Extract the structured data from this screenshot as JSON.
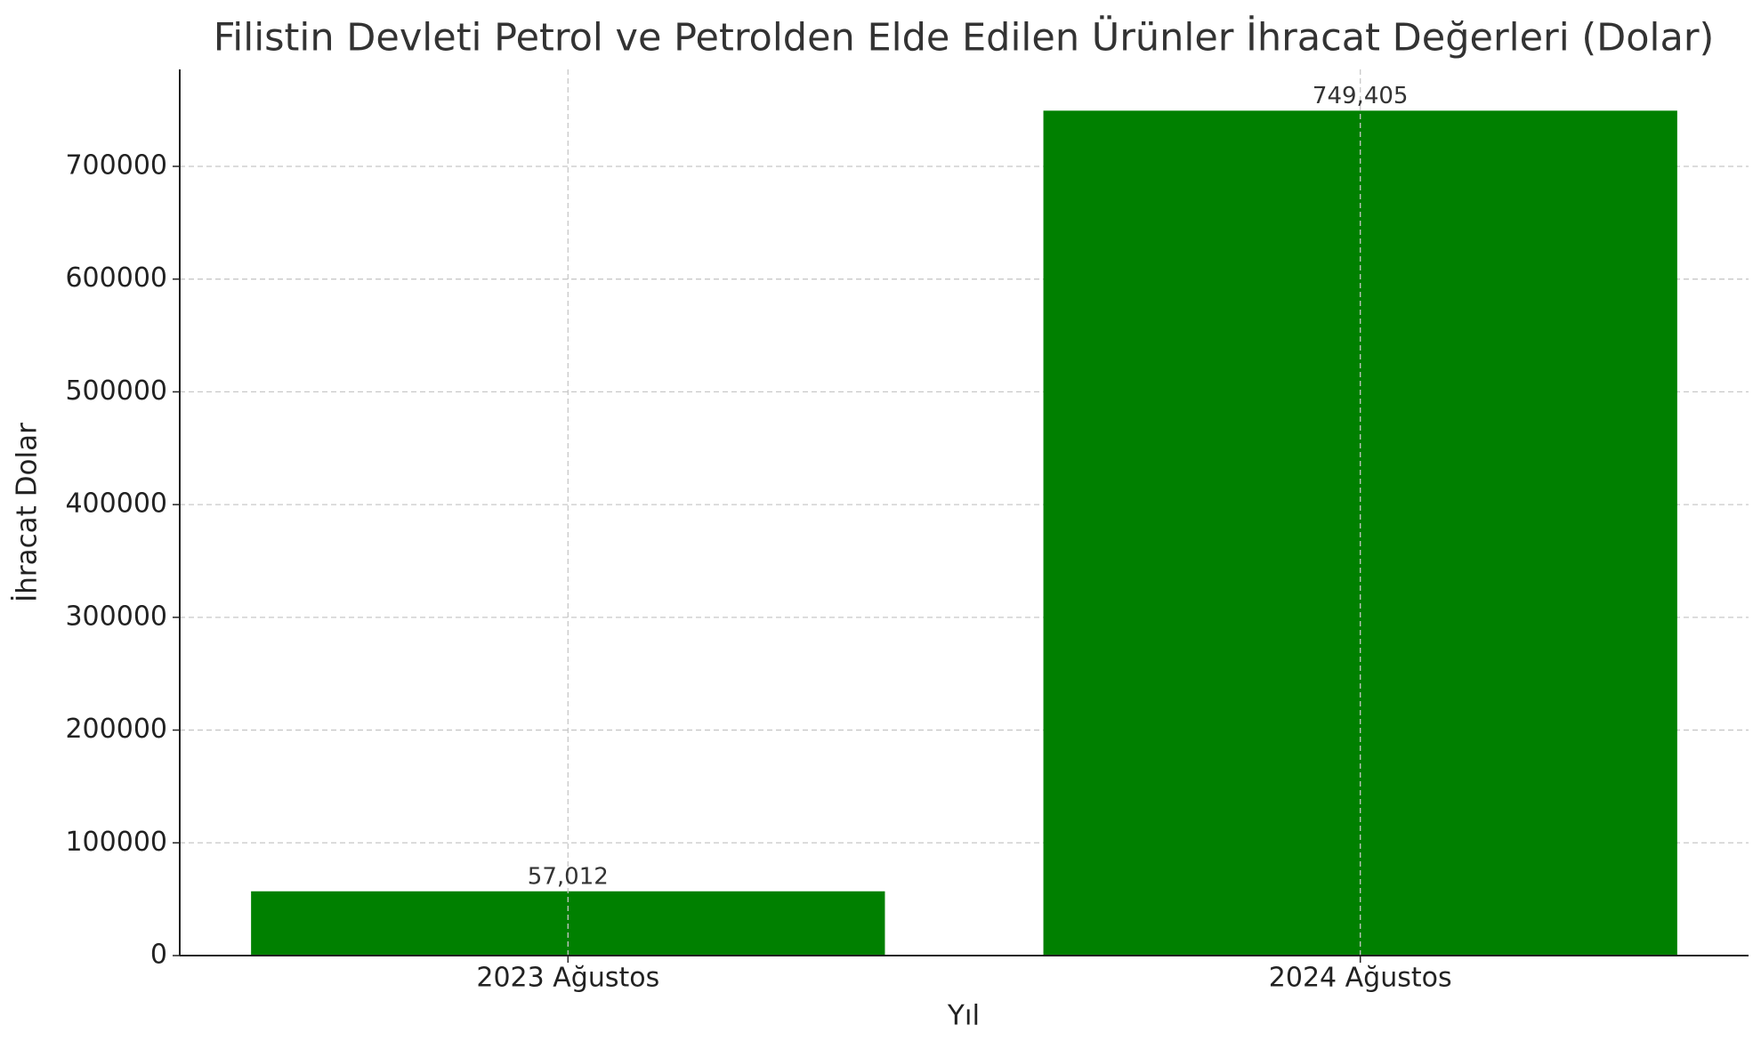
{
  "chart_data": {
    "type": "bar",
    "title": "Filistin Devleti Petrol ve Petrolden Elde Edilen Ürünler İhracat Değerleri (Dolar)",
    "x_label": "Yıl",
    "y_label": "İhracat Dolar",
    "categories": [
      "2023 Ağustos",
      "2024 Ağustos"
    ],
    "values": [
      57012,
      749405
    ],
    "value_labels": [
      "57,012",
      "749,405"
    ],
    "color": "#008000",
    "ylim": [
      0,
      786000
    ],
    "yticks": [
      0,
      100000,
      200000,
      300000,
      400000,
      500000,
      600000,
      700000
    ],
    "grid": true
  }
}
